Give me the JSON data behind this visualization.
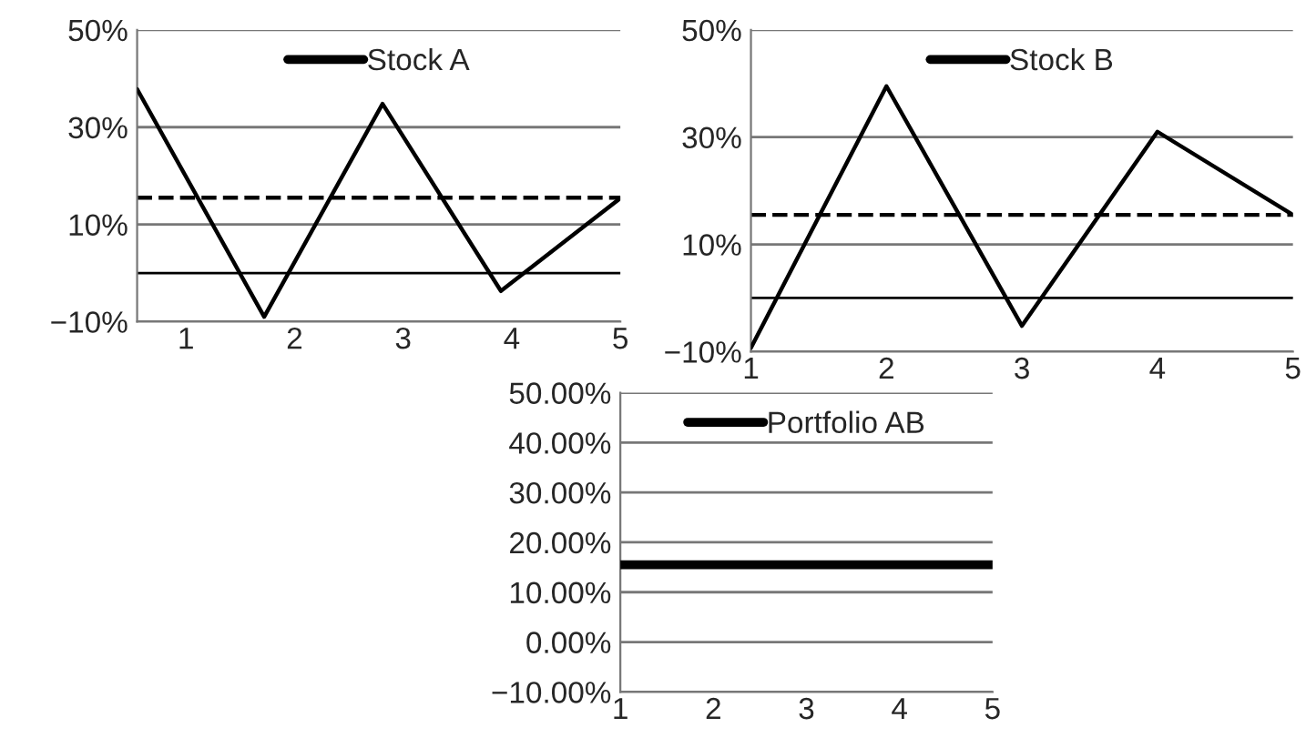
{
  "chart_data": [
    {
      "type": "line",
      "x": [
        0.55,
        1.72,
        2.81,
        3.9,
        5
      ],
      "series": [
        {
          "name": "Stock A",
          "color": "#000000",
          "values": [
            37.8,
            -9,
            34.8,
            -3.7,
            15.4
          ]
        }
      ],
      "xlim": [
        0.55,
        5
      ],
      "xticks": [
        1,
        2,
        3,
        4,
        5
      ],
      "ylim": [
        -10,
        50
      ],
      "yticks": [
        {
          "value": -10,
          "label": "−10%"
        },
        {
          "value": 10,
          "label": "10%"
        },
        {
          "value": 30,
          "label": "30%"
        },
        {
          "value": 50,
          "label": "50%"
        }
      ],
      "grid": "y",
      "legend": "top",
      "line_style": "solid",
      "ref_lines": [
        {
          "axis": "y",
          "value": 15.5,
          "color": "#000000",
          "line_style": "dashed"
        },
        {
          "axis": "y",
          "value": 0,
          "color": "#000000",
          "line_style": "solid"
        }
      ]
    },
    {
      "type": "line",
      "x": [
        1,
        2,
        3,
        4,
        5
      ],
      "series": [
        {
          "name": "Stock B",
          "color": "#000000",
          "values": [
            -9.3,
            39.5,
            -5.2,
            31,
            15.5
          ]
        }
      ],
      "xlim": [
        1,
        5
      ],
      "xticks": [
        1,
        2,
        3,
        4,
        5
      ],
      "ylim": [
        -10,
        50
      ],
      "yticks": [
        {
          "value": -10,
          "label": "−10%"
        },
        {
          "value": 10,
          "label": "10%"
        },
        {
          "value": 30,
          "label": "30%"
        },
        {
          "value": 50,
          "label": "50%"
        }
      ],
      "grid": "y",
      "legend": "top",
      "line_style": "solid",
      "ref_lines": [
        {
          "axis": "y",
          "value": 15.5,
          "color": "#000000",
          "line_style": "dashed"
        },
        {
          "axis": "y",
          "value": 0,
          "color": "#000000",
          "line_style": "solid"
        }
      ]
    },
    {
      "type": "line",
      "x": [
        1,
        2,
        3,
        4,
        5
      ],
      "series": [
        {
          "name": "Portfolio AB",
          "color": "#000000",
          "values": [
            15.5,
            15.5,
            15.5,
            15.5,
            15.5
          ]
        }
      ],
      "xlim": [
        1,
        5
      ],
      "xticks": [
        1,
        2,
        3,
        4,
        5
      ],
      "ylim": [
        -10,
        50
      ],
      "yticks": [
        {
          "value": -10,
          "label": "−10.00%"
        },
        {
          "value": 0,
          "label": "0.00%"
        },
        {
          "value": 10,
          "label": "10.00%"
        },
        {
          "value": 20,
          "label": "20.00%"
        },
        {
          "value": 30,
          "label": "30.00%"
        },
        {
          "value": 40,
          "label": "40.00%"
        },
        {
          "value": 50,
          "label": "50.00%"
        }
      ],
      "grid": "y",
      "legend": "top",
      "line_style": "solid"
    }
  ]
}
